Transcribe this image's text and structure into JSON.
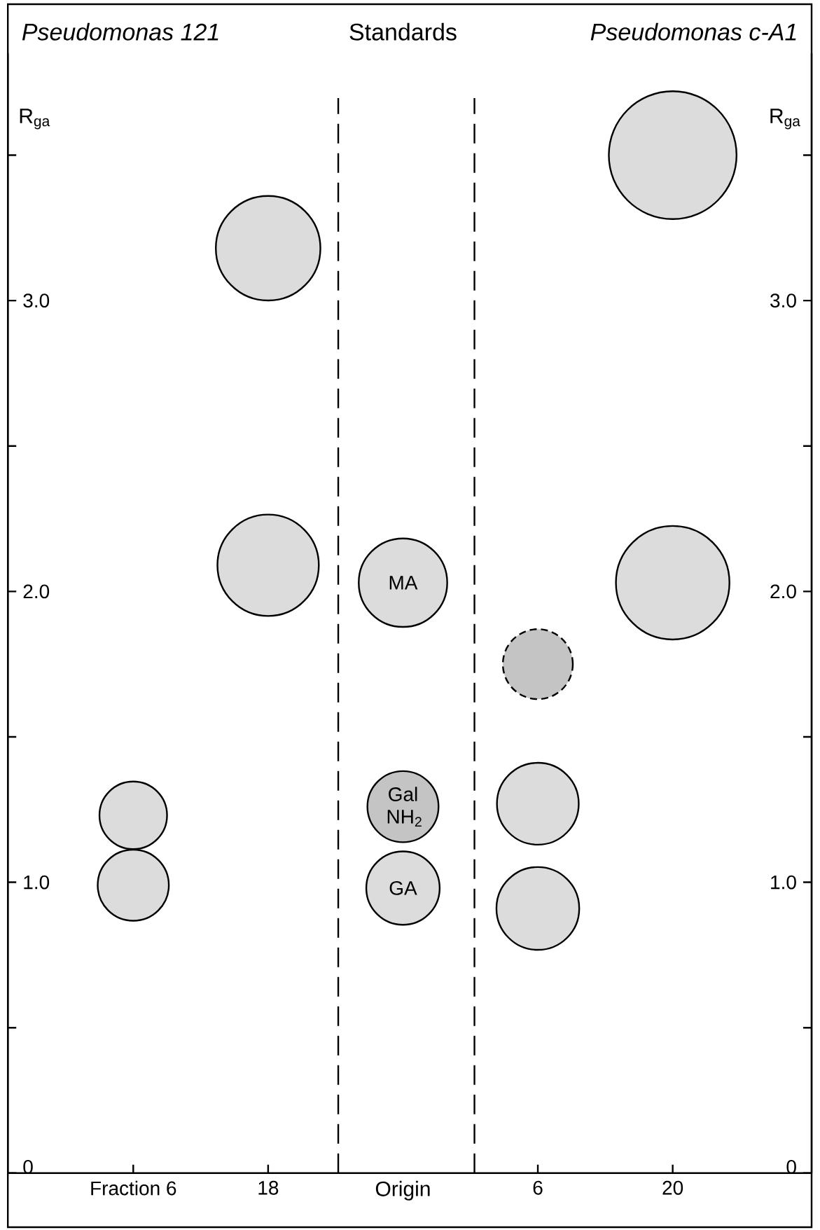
{
  "chart_data": {
    "type": "bubble",
    "ylabel": "R$_{ga}$",
    "y2label": "R$_{ga}$",
    "categories": [
      "Fraction 6",
      "18",
      null,
      "6",
      "20"
    ],
    "series": [
      {
        "color": "#dcdcdc",
        "values": [
          0.99,
          2.09,
          0.98,
          0.91,
          2.03
        ],
        "sizes": [
          0.31,
          0.63,
          0.33,
          0.42,
          0.79
        ]
      },
      {
        "color": "#dcdcdc",
        "values": [
          1.23,
          3.18,
          2.03,
          1.27,
          3.5
        ],
        "sizes": [
          0.28,
          0.67,
          0.48,
          0.41,
          1
        ]
      },
      {
        "color": "#c4c4c4",
        "values": [
          null,
          null,
          1.26,
          null,
          null
        ],
        "sizes": [
          null,
          null,
          0.31,
          null,
          null
        ]
      },
      {
        "color": "#c4c4c4",
        "values": [
          null,
          null,
          null,
          1.75,
          null
        ],
        "sizes": [
          null,
          null,
          null,
          0.3,
          null
        ],
        "line_style": "dashed"
      }
    ],
    "annotations": [
      "Pseudomonas 121",
      "Standards",
      "Pseudomonas c-A1",
      {
        "text": "MA",
        "y": 2.03
      },
      {
        "text": "Gal NH$_{2}$",
        "y": 1.26
      },
      {
        "text": "GA",
        "y": 0.98
      }
    ],
    "xlabel": "Origin",
    "ylim": [
      0,
      3.85
    ],
    "yticks": [
      0,
      {
        "value": 0.5,
        "label": null
      },
      {
        "value": 1,
        "label": "1.0"
      },
      {
        "value": 1.5,
        "label": null
      },
      {
        "value": 2,
        "label": "2.0"
      },
      {
        "value": 2.5,
        "label": null
      },
      {
        "value": 3,
        "label": "3.0"
      },
      {
        "value": 3.5,
        "label": null
      }
    ],
    "y2lim": [
      0,
      3.85
    ],
    "y2ticks": [
      0,
      {
        "value": 0.5,
        "label": null
      },
      {
        "value": 1,
        "label": "1.0"
      },
      {
        "value": 1.5,
        "label": null
      },
      {
        "value": 2,
        "label": "2.0"
      },
      {
        "value": 2.5,
        "label": null
      },
      {
        "value": 3,
        "label": "3.0"
      },
      {
        "value": 3.5,
        "label": null
      }
    ]
  }
}
